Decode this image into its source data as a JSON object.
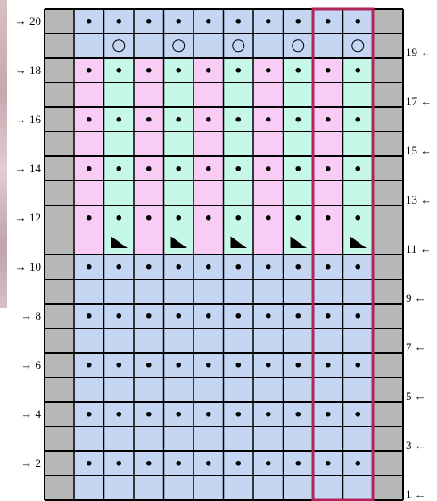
{
  "chart": {
    "rows": 20,
    "stitches": 10,
    "repeat_start_stitch": 9,
    "repeat_stitch_count": 2,
    "repeat_outline_color": "#b3245b",
    "colors": {
      "blue": "#c4d6f2",
      "pink": "#f8ccf4",
      "mint": "#c6f8ea",
      "edge": "#b7b7b7",
      "grid": "#000000"
    },
    "symbols": {
      "purl": "dot",
      "yarn_over": "circle",
      "decrease": "corner-triangle"
    },
    "row_labels": {
      "20": "→ 20",
      "19": "19 ←",
      "18": "→ 18",
      "17": "17 ←",
      "16": "→ 16",
      "15": "15 ←",
      "14": "→ 14",
      "13": "13 ←",
      "12": "→ 12",
      "11": "11 ←",
      "10": "→ 10",
      "9": "9 ←",
      "8": "→ 8",
      "7": "7 ←",
      "6": "→ 6",
      "5": "5 ←",
      "4": "→ 4",
      "3": "3 ←",
      "2": "→ 2",
      "1": "1 ←"
    },
    "section_colors": [
      {
        "rows": [
          1,
          10
        ],
        "pattern": [
          "blue",
          "blue",
          "blue",
          "blue",
          "blue",
          "blue",
          "blue",
          "blue",
          "blue",
          "blue"
        ]
      },
      {
        "rows": [
          11,
          18
        ],
        "pattern": [
          "pink",
          "mint",
          "pink",
          "mint",
          "pink",
          "mint",
          "pink",
          "mint",
          "pink",
          "mint"
        ]
      },
      {
        "rows": [
          19,
          20
        ],
        "pattern": [
          "blue",
          "blue",
          "blue",
          "blue",
          "blue",
          "blue",
          "blue",
          "blue",
          "blue",
          "blue"
        ]
      }
    ],
    "row_symbols": {
      "1": [
        "",
        "",
        "",
        "",
        "",
        "",
        "",
        "",
        "",
        ""
      ],
      "2": [
        "dot",
        "dot",
        "dot",
        "dot",
        "dot",
        "dot",
        "dot",
        "dot",
        "dot",
        "dot"
      ],
      "3": [
        "",
        "",
        "",
        "",
        "",
        "",
        "",
        "",
        "",
        ""
      ],
      "4": [
        "dot",
        "dot",
        "dot",
        "dot",
        "dot",
        "dot",
        "dot",
        "dot",
        "dot",
        "dot"
      ],
      "5": [
        "",
        "",
        "",
        "",
        "",
        "",
        "",
        "",
        "",
        ""
      ],
      "6": [
        "dot",
        "dot",
        "dot",
        "dot",
        "dot",
        "dot",
        "dot",
        "dot",
        "dot",
        "dot"
      ],
      "7": [
        "",
        "",
        "",
        "",
        "",
        "",
        "",
        "",
        "",
        ""
      ],
      "8": [
        "dot",
        "dot",
        "dot",
        "dot",
        "dot",
        "dot",
        "dot",
        "dot",
        "dot",
        "dot"
      ],
      "9": [
        "",
        "",
        "",
        "",
        "",
        "",
        "",
        "",
        "",
        ""
      ],
      "10": [
        "dot",
        "dot",
        "dot",
        "dot",
        "dot",
        "dot",
        "dot",
        "dot",
        "dot",
        "dot"
      ],
      "11": [
        "",
        "tri",
        "",
        "tri",
        "",
        "tri",
        "",
        "tri",
        "",
        "tri"
      ],
      "12": [
        "dot",
        "dot",
        "dot",
        "dot",
        "dot",
        "dot",
        "dot",
        "dot",
        "dot",
        "dot"
      ],
      "13": [
        "",
        "",
        "",
        "",
        "",
        "",
        "",
        "",
        "",
        ""
      ],
      "14": [
        "dot",
        "dot",
        "dot",
        "dot",
        "dot",
        "dot",
        "dot",
        "dot",
        "dot",
        "dot"
      ],
      "15": [
        "",
        "",
        "",
        "",
        "",
        "",
        "",
        "",
        "",
        ""
      ],
      "16": [
        "dot",
        "dot",
        "dot",
        "dot",
        "dot",
        "dot",
        "dot",
        "dot",
        "dot",
        "dot"
      ],
      "17": [
        "",
        "",
        "",
        "",
        "",
        "",
        "",
        "",
        "",
        ""
      ],
      "18": [
        "dot",
        "dot",
        "dot",
        "dot",
        "dot",
        "dot",
        "dot",
        "dot",
        "dot",
        "dot"
      ],
      "19": [
        "",
        "circle",
        "",
        "circle",
        "",
        "circle",
        "",
        "circle",
        "",
        "circle"
      ],
      "20": [
        "dot",
        "dot",
        "dot",
        "dot",
        "dot",
        "dot",
        "dot",
        "dot",
        "dot",
        "dot"
      ]
    }
  }
}
